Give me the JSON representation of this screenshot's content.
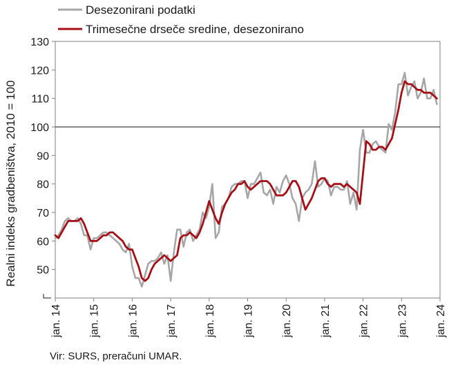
{
  "chart_data": {
    "type": "line",
    "ylabel": "Realni indeks gradbeništva, 2010 = 100",
    "ylim": [
      40,
      130
    ],
    "yticks": [
      50,
      60,
      70,
      80,
      90,
      100,
      110,
      120,
      130
    ],
    "x_tick_labels": [
      "jan. 14",
      "jan. 15",
      "jan. 16",
      "jan. 17",
      "jan. 18",
      "jan. 19",
      "jan. 20",
      "jan. 21",
      "jan. 22",
      "jan. 23",
      "jan. 24"
    ],
    "reference_line": 100,
    "legend_position": "top",
    "grid": false,
    "series": [
      {
        "name": "Desezonirani podatki",
        "color": "#a6a6a6",
        "values": [
          61,
          62,
          64,
          67,
          68,
          67,
          67,
          68,
          66,
          62,
          62,
          57,
          61,
          61,
          62,
          63,
          63,
          62,
          61,
          60,
          59,
          57,
          56,
          59,
          51,
          47,
          47,
          44,
          48,
          52,
          53,
          53,
          54,
          56,
          52,
          55,
          46,
          56,
          64,
          64,
          58,
          63,
          64,
          60,
          62,
          64,
          70,
          68,
          72,
          80,
          61,
          63,
          72,
          73,
          75,
          79,
          80,
          80,
          81,
          81,
          75,
          80,
          80,
          82,
          84,
          77,
          76,
          78,
          73,
          79,
          77,
          81,
          83,
          80,
          75,
          73,
          67,
          75,
          77,
          78,
          80,
          88,
          79,
          80,
          82,
          81,
          76,
          79,
          79,
          78,
          78,
          81,
          73,
          77,
          71,
          92,
          99,
          91,
          91,
          94,
          95,
          93,
          92,
          91,
          101,
          99,
          105,
          115,
          115,
          119,
          111,
          114,
          116,
          110,
          112,
          117,
          110,
          110,
          113,
          108
        ]
      },
      {
        "name": "Trimesečne drseče sredine, desezonirano",
        "color": "#a50f15",
        "values": [
          62,
          61,
          63,
          65,
          67,
          67,
          67,
          67,
          68,
          66,
          63,
          60,
          60,
          60,
          61,
          62,
          62,
          63,
          63,
          62,
          61,
          60,
          58,
          57,
          57,
          54,
          51,
          47,
          46,
          47,
          50,
          52,
          53,
          54,
          55,
          54,
          53,
          54,
          55,
          61,
          62,
          62,
          63,
          62,
          61,
          63,
          66,
          70,
          74,
          71,
          68,
          66,
          70,
          73,
          75,
          77,
          78,
          80,
          80,
          81,
          79,
          78,
          79,
          80,
          81,
          81,
          81,
          80,
          78,
          76,
          76,
          76,
          77,
          79,
          81,
          81,
          79,
          75,
          71,
          73,
          75,
          78,
          81,
          82,
          82,
          80,
          79,
          80,
          80,
          80,
          79,
          80,
          79,
          78,
          77,
          73,
          84,
          95,
          94,
          92,
          92,
          93,
          93,
          92,
          94,
          96,
          101,
          106,
          112,
          116,
          115,
          115,
          114,
          113,
          113,
          112,
          112,
          112,
          111,
          110
        ]
      }
    ]
  },
  "source_note": "Vir: SURS, preračuni UMAR."
}
